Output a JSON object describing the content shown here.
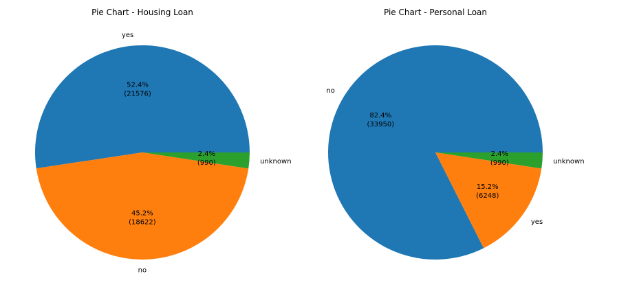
{
  "chart_data": [
    {
      "type": "pie",
      "title": "Pie Chart - Housing Loan",
      "startangle": 0,
      "slices": [
        {
          "label": "yes",
          "value": 21576,
          "pct": "52.4%",
          "count": "(21576)",
          "color": "#1f77b4"
        },
        {
          "label": "no",
          "value": 18622,
          "pct": "45.2%",
          "count": "(18622)",
          "color": "#ff7f0e"
        },
        {
          "label": "unknown",
          "value": 990,
          "pct": "2.4%",
          "count": "(990)",
          "color": "#2ca02c"
        }
      ]
    },
    {
      "type": "pie",
      "title": "Pie Chart - Personal Loan",
      "startangle": 0,
      "slices": [
        {
          "label": "no",
          "value": 33950,
          "pct": "82.4%",
          "count": "(33950)",
          "color": "#1f77b4"
        },
        {
          "label": "yes",
          "value": 6248,
          "pct": "15.2%",
          "count": "(6248)",
          "color": "#ff7f0e"
        },
        {
          "label": "unknown",
          "value": 990,
          "pct": "2.4%",
          "count": "(990)",
          "color": "#2ca02c"
        }
      ]
    }
  ]
}
